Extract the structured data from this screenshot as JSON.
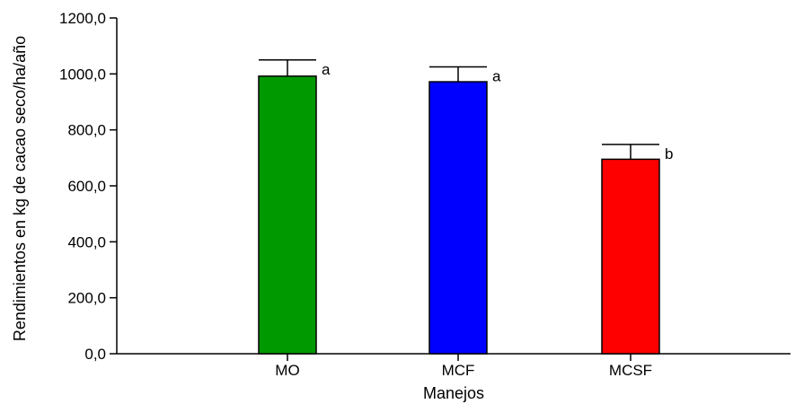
{
  "chart_data": {
    "type": "bar",
    "categories": [
      "MO",
      "MCF",
      "MCSF"
    ],
    "values": [
      992,
      972,
      695
    ],
    "error_upper": [
      1050,
      1025,
      748
    ],
    "significance": [
      "a",
      "a",
      "b"
    ],
    "colors": [
      "#009900",
      "#0000ff",
      "#ff0000"
    ],
    "xlabel": "Manejos",
    "ylabel": "Rendimientos en kg de cacao seco/ha/año",
    "ylim": [
      0,
      1200
    ],
    "yticks": [
      0,
      200,
      400,
      600,
      800,
      1000,
      1200
    ],
    "ytick_labels": [
      "0,0",
      "200,0",
      "400,0",
      "600,0",
      "800,0",
      "1000,0",
      "1200,0"
    ],
    "grid": false,
    "legend": "none"
  }
}
